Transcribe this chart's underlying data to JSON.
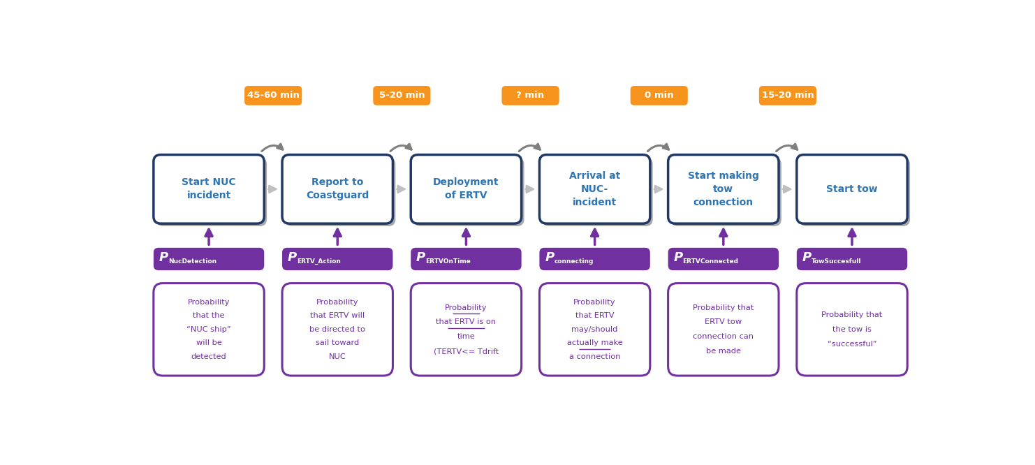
{
  "bg": "#ffffff",
  "orange": "#F7941D",
  "orange_fg": "#ffffff",
  "blue_border": "#1F3864",
  "blue_fill": "#ffffff",
  "blue_fg": "#2E75B6",
  "purple": "#7030A0",
  "purple_fg": "#ffffff",
  "gray_arc": "#7F7F7F",
  "gray_horiz": "#BFBFBF",
  "time_labels": [
    "45-60 min",
    "5-20 min",
    "? min",
    "0 min",
    "15-20 min"
  ],
  "blue_texts": [
    "Start NUC\nincident",
    "Report to\nCoastguard",
    "Deployment\nof ERTV",
    "Arrival at\nNUC-\nincident",
    "Start making\ntow\nconnection",
    "Start tow"
  ],
  "prob_subs": [
    "NucDetection",
    "ERTV_Action",
    "ERTVOnTime",
    "connecting",
    "ERTVConnected",
    "TowSuccesfull"
  ],
  "desc_lines": [
    [
      "Probability",
      "that the",
      "“NUC ship”",
      "will be",
      "detected"
    ],
    [
      "Probability",
      "that ERTV will",
      "be directed to",
      "sail toward",
      "NUC"
    ],
    [
      "Probability",
      "that ERTV is on",
      "time",
      "(TERTV<= Tdrift"
    ],
    [
      "Probability",
      "that ERTV",
      "may/should",
      "actually make",
      "a connection"
    ],
    [
      "Probability that",
      "ERTV tow",
      "connection can",
      "be made"
    ],
    [
      "Probability that",
      "the tow is",
      "“successful”"
    ]
  ],
  "desc_ul": [
    [
      false,
      false,
      false,
      false,
      false
    ],
    [
      false,
      false,
      false,
      false,
      false
    ],
    [
      true,
      true,
      false,
      false
    ],
    [
      false,
      false,
      false,
      true,
      false
    ],
    [
      false,
      false,
      false,
      false
    ],
    [
      false,
      false,
      false
    ]
  ]
}
